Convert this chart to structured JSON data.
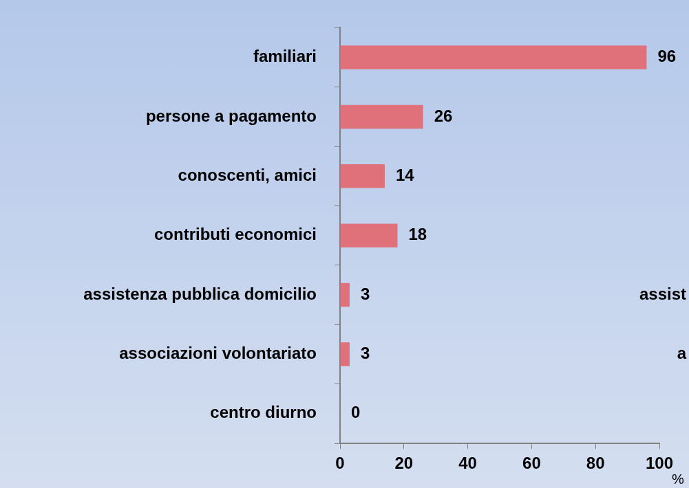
{
  "chart_data": {
    "type": "bar",
    "orientation": "horizontal",
    "xlabel": "%",
    "categories": [
      "familiari",
      "persone a pagamento",
      "conoscenti, amici",
      "contributi economici",
      "assistenza pubblica domicilio",
      "associazioni volontariato",
      "centro diurno"
    ],
    "values": [
      96,
      26,
      14,
      18,
      3,
      3,
      0
    ],
    "color": "#e0707a",
    "xlim": [
      0,
      100
    ],
    "xticks": [
      0,
      20,
      40,
      60,
      80,
      100
    ],
    "grid": false,
    "legend": false,
    "data_labels": true,
    "annotations": [
      "assist",
      "a"
    ]
  }
}
